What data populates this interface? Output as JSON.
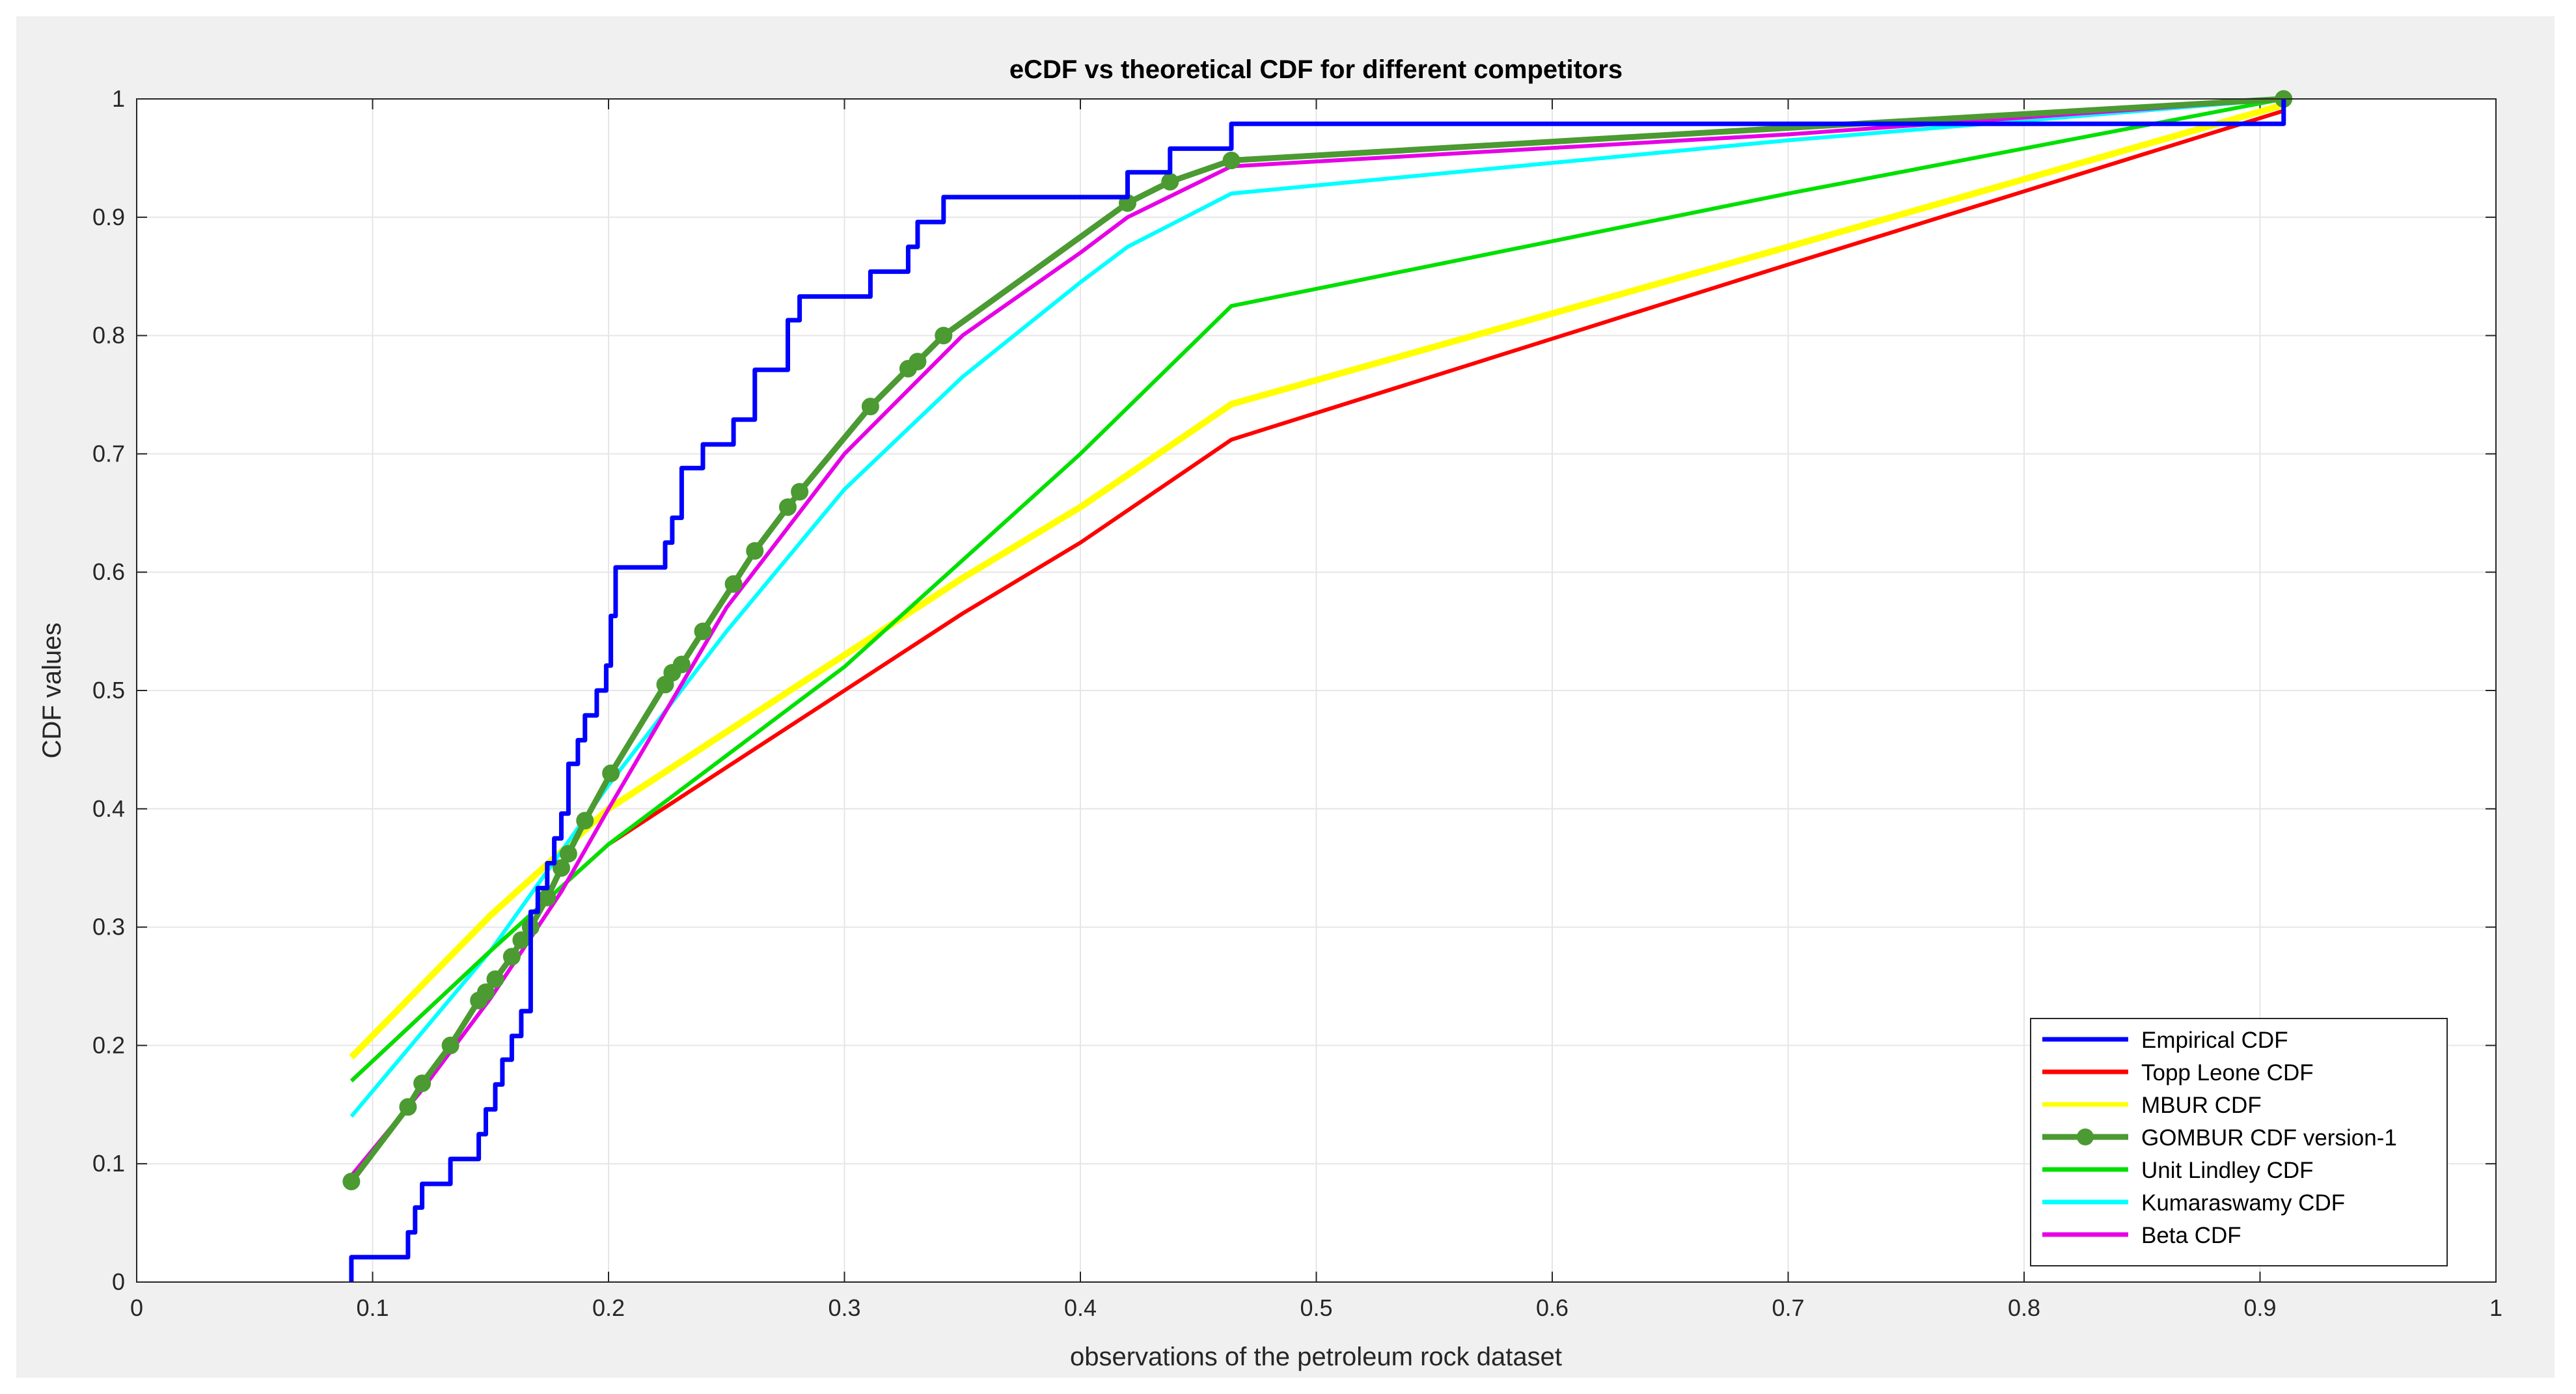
{
  "chart_data": {
    "type": "line",
    "title": "eCDF vs theoretical CDF for different competitors",
    "xlabel": "observations of the petroleum rock dataset",
    "ylabel": "CDF values",
    "xlim": [
      0,
      1
    ],
    "ylim": [
      0,
      1
    ],
    "xticks": [
      "0",
      "0.1",
      "0.2",
      "0.3",
      "0.4",
      "0.5",
      "0.6",
      "0.7",
      "0.8",
      "0.9",
      "1"
    ],
    "yticks": [
      "0",
      "0.1",
      "0.2",
      "0.3",
      "0.4",
      "0.5",
      "0.6",
      "0.7",
      "0.8",
      "0.9",
      "1"
    ],
    "grid": true,
    "legend_position": "bottom-right",
    "series": [
      {
        "name": "Empirical CDF",
        "color": "#0000ff",
        "style": "step",
        "x": [
          0.091,
          0.115,
          0.118,
          0.121,
          0.127,
          0.133,
          0.145,
          0.148,
          0.152,
          0.155,
          0.159,
          0.163,
          0.167,
          0.17,
          0.174,
          0.177,
          0.18,
          0.183,
          0.187,
          0.19,
          0.195,
          0.199,
          0.201,
          0.203,
          0.224,
          0.227,
          0.231,
          0.24,
          0.253,
          0.262,
          0.276,
          0.281,
          0.311,
          0.327,
          0.331,
          0.342,
          0.42,
          0.438,
          0.464,
          0.91
        ],
        "y": [
          0.021,
          0.042,
          0.063,
          0.083,
          0.083,
          0.104,
          0.125,
          0.146,
          0.167,
          0.188,
          0.208,
          0.229,
          0.313,
          0.333,
          0.354,
          0.375,
          0.396,
          0.438,
          0.458,
          0.479,
          0.5,
          0.521,
          0.563,
          0.604,
          0.625,
          0.646,
          0.688,
          0.708,
          0.729,
          0.771,
          0.813,
          0.833,
          0.854,
          0.875,
          0.896,
          0.917,
          0.938,
          0.958,
          0.979,
          1.0
        ],
        "start_y": 0.0,
        "end_x": 0.91
      },
      {
        "name": "Topp Leone CDF",
        "color": "#ff0000",
        "x": [
          0.091,
          0.15,
          0.2,
          0.3,
          0.35,
          0.4,
          0.464,
          0.7,
          0.91
        ],
        "y": [
          0.17,
          0.28,
          0.37,
          0.5,
          0.565,
          0.625,
          0.712,
          0.86,
          0.99
        ]
      },
      {
        "name": "MBUR CDF",
        "color": "#ffff00",
        "x": [
          0.091,
          0.15,
          0.2,
          0.3,
          0.35,
          0.4,
          0.464,
          0.7,
          0.91
        ],
        "y": [
          0.19,
          0.31,
          0.4,
          0.53,
          0.595,
          0.655,
          0.742,
          0.875,
          0.995
        ]
      },
      {
        "name": "GOMBUR CDF version-1",
        "color": "#4b9a32",
        "markers": true,
        "x": [
          0.091,
          0.115,
          0.121,
          0.133,
          0.145,
          0.148,
          0.152,
          0.159,
          0.163,
          0.167,
          0.174,
          0.18,
          0.183,
          0.19,
          0.201,
          0.224,
          0.227,
          0.231,
          0.24,
          0.253,
          0.262,
          0.276,
          0.281,
          0.311,
          0.327,
          0.331,
          0.342,
          0.42,
          0.438,
          0.464,
          0.91
        ],
        "y": [
          0.085,
          0.148,
          0.168,
          0.2,
          0.238,
          0.245,
          0.256,
          0.275,
          0.289,
          0.3,
          0.325,
          0.35,
          0.362,
          0.39,
          0.43,
          0.505,
          0.515,
          0.522,
          0.55,
          0.59,
          0.618,
          0.655,
          0.668,
          0.74,
          0.772,
          0.778,
          0.8,
          0.912,
          0.93,
          0.948,
          1.0
        ]
      },
      {
        "name": "Unit Lindley CDF",
        "color": "#00e000",
        "x": [
          0.091,
          0.15,
          0.2,
          0.3,
          0.35,
          0.4,
          0.464,
          0.7,
          0.91
        ],
        "y": [
          0.17,
          0.28,
          0.37,
          0.52,
          0.61,
          0.7,
          0.825,
          0.92,
          1.0
        ]
      },
      {
        "name": "Kumaraswamy CDF",
        "color": "#00ffff",
        "x": [
          0.091,
          0.15,
          0.2,
          0.25,
          0.3,
          0.35,
          0.4,
          0.42,
          0.464,
          0.7,
          0.91
        ],
        "y": [
          0.14,
          0.28,
          0.42,
          0.55,
          0.67,
          0.765,
          0.845,
          0.875,
          0.92,
          0.965,
          1.0
        ]
      },
      {
        "name": "Beta CDF",
        "color": "#e600e6",
        "x": [
          0.091,
          0.12,
          0.15,
          0.18,
          0.2,
          0.25,
          0.3,
          0.35,
          0.4,
          0.42,
          0.464,
          0.7,
          0.91
        ],
        "y": [
          0.09,
          0.16,
          0.24,
          0.33,
          0.4,
          0.57,
          0.7,
          0.8,
          0.87,
          0.9,
          0.943,
          0.97,
          1.0
        ]
      }
    ]
  }
}
